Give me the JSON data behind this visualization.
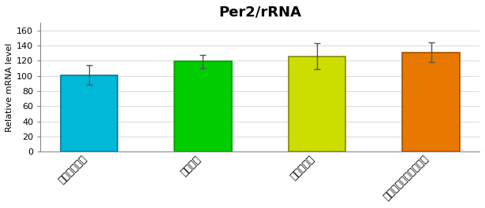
{
  "title": "Per2/rRNA",
  "ylabel": "Relative mRNA level",
  "categories": [
    "コントロール",
    "リモネン",
    "レモン果汁",
    "レモン果汁＋リモネン"
  ],
  "values": [
    101,
    119,
    126,
    131
  ],
  "errors": [
    13,
    9,
    17,
    13
  ],
  "bar_colors": [
    "#00B8D8",
    "#00CC00",
    "#CCDD00",
    "#E87800"
  ],
  "bar_edge_colors": [
    "#007A90",
    "#009900",
    "#888800",
    "#A05000"
  ],
  "ylim": [
    0,
    170
  ],
  "yticks": [
    0,
    20,
    40,
    60,
    80,
    100,
    120,
    140,
    160
  ],
  "background_color": "#ffffff",
  "title_fontsize": 13,
  "ylabel_fontsize": 8,
  "tick_fontsize": 8,
  "xtick_fontsize": 9,
  "bar_width": 0.5
}
